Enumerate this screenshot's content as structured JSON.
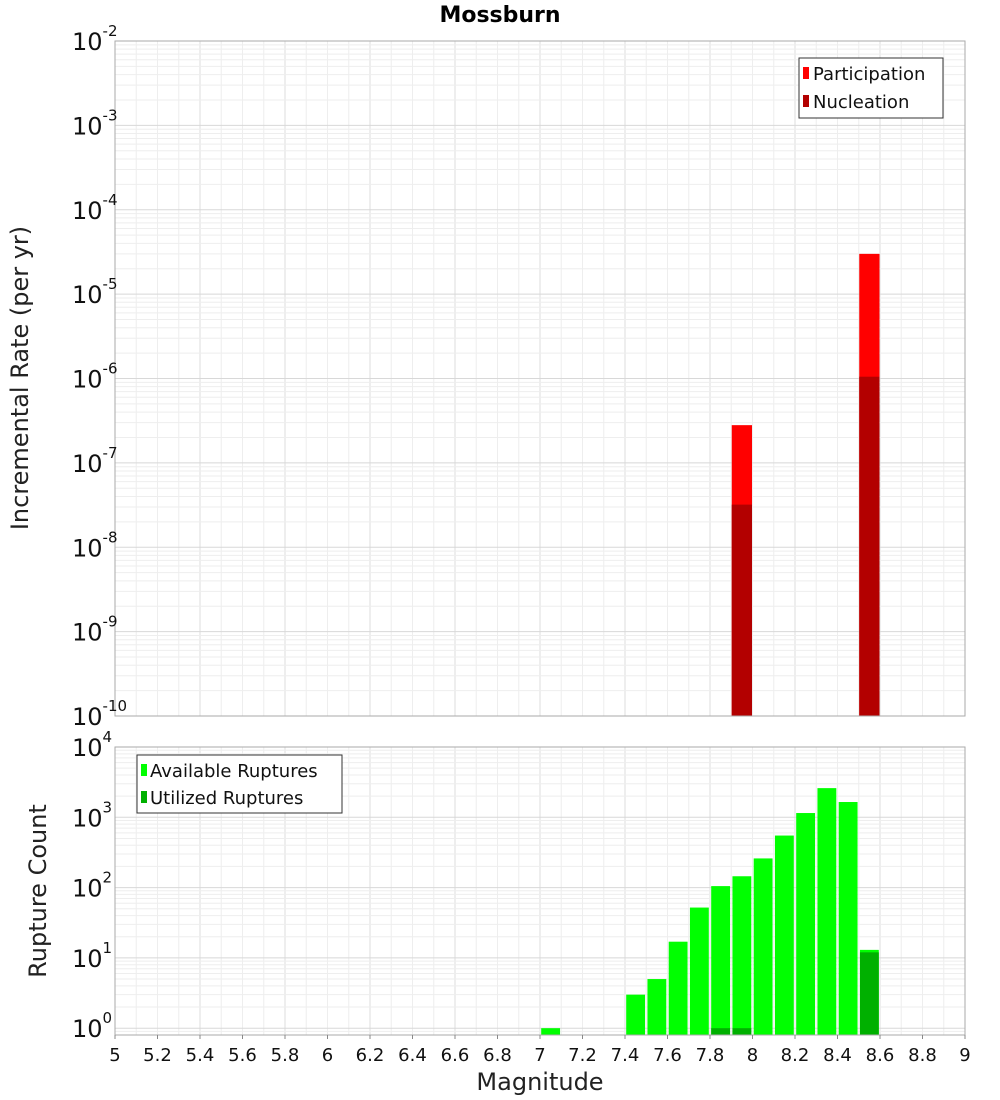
{
  "title": "Mossburn",
  "xlabel": "Magnitude",
  "chart_data": [
    {
      "type": "bar",
      "panel": "top",
      "ylabel": "Incremental Rate (per yr)",
      "yscale": "log",
      "ylim": [
        1e-10,
        0.01
      ],
      "xlim": [
        5,
        9
      ],
      "grid": true,
      "legend_placement": "top-right",
      "bin_width": 0.1,
      "series": [
        {
          "name": "Participation",
          "color": "#ff0000",
          "x": [
            7.95,
            8.55
          ],
          "values": [
            2.8e-07,
            3e-05
          ]
        },
        {
          "name": "Nucleation",
          "color": "#b30000",
          "x": [
            7.95,
            8.55
          ],
          "values": [
            3.2e-08,
            1.05e-06
          ]
        }
      ]
    },
    {
      "type": "bar",
      "panel": "bottom",
      "ylabel": "Rupture Count",
      "yscale": "log",
      "ylim": [
        0.8,
        10000
      ],
      "xlim": [
        5,
        9
      ],
      "grid": true,
      "legend_placement": "top-left",
      "bin_width": 0.1,
      "series": [
        {
          "name": "Available Ruptures",
          "color": "#00ff00",
          "x": [
            7.05,
            7.45,
            7.55,
            7.65,
            7.75,
            7.85,
            7.95,
            8.05,
            8.15,
            8.25,
            8.35,
            8.45,
            8.55
          ],
          "values": [
            1,
            3,
            5,
            17,
            52,
            105,
            145,
            260,
            550,
            1150,
            2600,
            1650,
            13
          ]
        },
        {
          "name": "Utilized Ruptures",
          "color": "#00b000",
          "x": [
            7.85,
            7.95,
            8.55
          ],
          "values": [
            1,
            1,
            12
          ]
        }
      ]
    }
  ],
  "x_ticks": [
    "5",
    "5.2",
    "5.4",
    "5.6",
    "5.8",
    "6",
    "6.2",
    "6.4",
    "6.6",
    "6.8",
    "7",
    "7.2",
    "7.4",
    "7.6",
    "7.8",
    "8",
    "8.2",
    "8.4",
    "8.6",
    "8.8",
    "9"
  ],
  "top_y_ticks": [
    {
      "base": "10",
      "exp": "-2"
    },
    {
      "base": "10",
      "exp": "-3"
    },
    {
      "base": "10",
      "exp": "-4"
    },
    {
      "base": "10",
      "exp": "-5"
    },
    {
      "base": "10",
      "exp": "-6"
    },
    {
      "base": "10",
      "exp": "-7"
    },
    {
      "base": "10",
      "exp": "-8"
    },
    {
      "base": "10",
      "exp": "-9"
    },
    {
      "base": "10",
      "exp": "-10"
    }
  ],
  "bottom_y_ticks": [
    {
      "base": "10",
      "exp": "4"
    },
    {
      "base": "10",
      "exp": "3"
    },
    {
      "base": "10",
      "exp": "2"
    },
    {
      "base": "10",
      "exp": "1"
    },
    {
      "base": "10",
      "exp": "0"
    }
  ]
}
